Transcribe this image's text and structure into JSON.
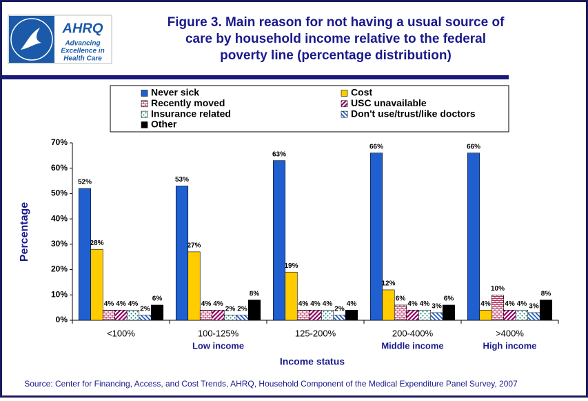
{
  "logo": {
    "name": "AHRQ",
    "tagline": [
      "Advancing",
      "Excellence in",
      "Health Care"
    ]
  },
  "chart_data": {
    "type": "bar",
    "title": [
      "Figure 3. Main reason for not having a usual source of",
      "care by household income relative to the federal",
      "poverty line (percentage distribution)"
    ],
    "x_label": "Income status",
    "y_label": "Percentage",
    "source": "Source: Center for Financing, Access, and Cost Trends, AHRQ, Household Component of the Medical Expenditure Panel Survey, 2007",
    "categories": [
      "<100%",
      "100-125%",
      "125-200%",
      "200-400%",
      ">400%"
    ],
    "category_notes": [
      null,
      "Low income",
      null,
      "Middle income",
      "High income"
    ],
    "ylim": [
      0,
      70
    ],
    "yticks": [
      {
        "value": 0,
        "label": "0%"
      },
      {
        "value": 10,
        "label": "10%"
      },
      {
        "value": 20,
        "label": "20%"
      },
      {
        "value": 30,
        "label": "30%"
      },
      {
        "value": 40,
        "label": "40%"
      },
      {
        "value": 50,
        "label": "50%"
      },
      {
        "value": 60,
        "label": "60%"
      },
      {
        "value": 70,
        "label": "70%"
      }
    ],
    "series": [
      {
        "name": "Never sick",
        "color": "#1f5fcf",
        "pattern": "solid",
        "values": [
          52,
          53,
          63,
          66,
          66
        ],
        "value_labels": [
          "52%",
          "53%",
          "63%",
          "66%",
          "66%"
        ]
      },
      {
        "name": "Cost",
        "color": "#ffcc00",
        "pattern": "solid",
        "values": [
          28,
          27,
          19,
          12,
          4
        ],
        "value_labels": [
          "28%",
          "27%",
          "19%",
          "12%",
          "4%"
        ]
      },
      {
        "name": "Recently moved",
        "color": "#b03060",
        "pattern": "bricks",
        "values": [
          4,
          4,
          4,
          6,
          10
        ],
        "value_labels": [
          "4%",
          "4%",
          "4%",
          "6%",
          "10%"
        ]
      },
      {
        "name": "USC unavailable",
        "color": "#990066",
        "pattern": "diagonal",
        "values": [
          4,
          4,
          4,
          4,
          4
        ],
        "value_labels": [
          "4%",
          "4%",
          "4%",
          "4%",
          "4%"
        ]
      },
      {
        "name": "Insurance related",
        "color": "#008080",
        "pattern": "dots",
        "values": [
          4,
          2,
          4,
          4,
          4
        ],
        "value_labels": [
          "4%",
          "2%",
          "4%",
          "4%",
          "4%"
        ]
      },
      {
        "name": "Don't use/trust/like doctors",
        "color": "#1f5fcf",
        "pattern": "stripes",
        "values": [
          2,
          2,
          2,
          3,
          3
        ],
        "value_labels": [
          "2%",
          "2%",
          "2%",
          "3%",
          "3%"
        ]
      },
      {
        "name": "Other",
        "color": "#000000",
        "pattern": "solid",
        "values": [
          6,
          8,
          4,
          6,
          8
        ],
        "value_labels": [
          "6%",
          "8%",
          "4%",
          "6%",
          "8%"
        ]
      }
    ]
  }
}
